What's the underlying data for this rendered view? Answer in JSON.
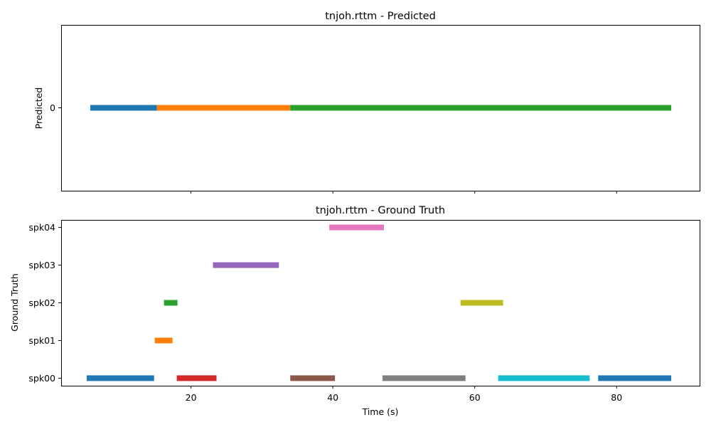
{
  "chart_data": [
    {
      "type": "timeline",
      "title": "tnjoh.rttm - Predicted",
      "ylabel": "Predicted",
      "xlabel": "",
      "xlim": [
        1.7,
        91.7
      ],
      "xticks": [
        20,
        40,
        60,
        80
      ],
      "show_xtick_labels": false,
      "categories": [
        "0"
      ],
      "segments": [
        {
          "speaker": "0",
          "start": 5.8,
          "end": 15.2,
          "color": "#1f77b4"
        },
        {
          "speaker": "0",
          "start": 15.2,
          "end": 34.0,
          "color": "#ff7f0e"
        },
        {
          "speaker": "0",
          "start": 34.0,
          "end": 87.7,
          "color": "#2ca02c"
        }
      ]
    },
    {
      "type": "timeline",
      "title": "tnjoh.rttm - Ground Truth",
      "ylabel": "Ground Truth",
      "xlabel": "Time (s)",
      "xlim": [
        1.7,
        91.7
      ],
      "xticks": [
        20,
        40,
        60,
        80
      ],
      "show_xtick_labels": true,
      "categories": [
        "spk00",
        "spk01",
        "spk02",
        "spk03",
        "spk04"
      ],
      "segments": [
        {
          "speaker": "spk00",
          "start": 5.3,
          "end": 14.8,
          "color": "#1f77b4"
        },
        {
          "speaker": "spk01",
          "start": 14.9,
          "end": 17.4,
          "color": "#ff7f0e"
        },
        {
          "speaker": "spk02",
          "start": 16.2,
          "end": 18.1,
          "color": "#2ca02c"
        },
        {
          "speaker": "spk00",
          "start": 18.0,
          "end": 23.6,
          "color": "#d62728"
        },
        {
          "speaker": "spk03",
          "start": 23.1,
          "end": 32.4,
          "color": "#9467bd"
        },
        {
          "speaker": "spk00",
          "start": 34.0,
          "end": 40.3,
          "color": "#8c564b"
        },
        {
          "speaker": "spk04",
          "start": 39.5,
          "end": 47.2,
          "color": "#e377c2"
        },
        {
          "speaker": "spk00",
          "start": 47.0,
          "end": 58.7,
          "color": "#7f7f7f"
        },
        {
          "speaker": "spk02",
          "start": 58.0,
          "end": 64.0,
          "color": "#bcbd22"
        },
        {
          "speaker": "spk00",
          "start": 63.3,
          "end": 76.2,
          "color": "#17becf"
        },
        {
          "speaker": "spk00",
          "start": 77.4,
          "end": 87.7,
          "color": "#1f77b4"
        }
      ]
    }
  ]
}
